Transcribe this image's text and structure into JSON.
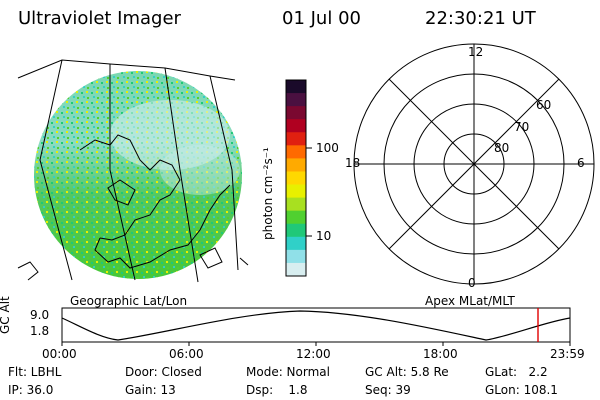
{
  "header": {
    "instrument": "Ultraviolet Imager",
    "date": "01 Jul 00",
    "time": "22:30:21 UT"
  },
  "colorbar": {
    "unit_label": "photon cm⁻²s⁻¹",
    "ticks": [
      "100",
      "10"
    ],
    "colors_top_to_bottom": [
      "#1a0a2a",
      "#4a1040",
      "#7a0830",
      "#b00020",
      "#e02010",
      "#ff6a00",
      "#ffaa00",
      "#ffd800",
      "#e8f000",
      "#a8e020",
      "#50d030",
      "#20c878",
      "#30d0c8",
      "#90e0e8",
      "#d8eef0"
    ]
  },
  "geo_panel": {
    "label": "Geographic Lat/Lon"
  },
  "polar_panel": {
    "label": "Apex MLat/MLT",
    "mlt_labels": {
      "top": "12",
      "left": "18",
      "right": "6",
      "bottom": "0"
    },
    "lat_labels": [
      "60",
      "70",
      "80"
    ]
  },
  "altitude_plot": {
    "ylabel": "GC Alt",
    "y_ticks": [
      "9.0",
      "1.8"
    ],
    "x_ticks": [
      "00:00",
      "06:00",
      "12:00",
      "18:00",
      "23:59"
    ],
    "current_marker_color": "#e00000"
  },
  "footer": {
    "row1": {
      "flt": "Flt: LBHL",
      "door": "Door: Closed",
      "mode": "Mode: Normal",
      "gc_alt": "GC Alt: 5.8 Re",
      "glat": "GLat:   2.2"
    },
    "row2": {
      "ip": "IP: 36.0",
      "gain": "Gain: 13",
      "dsp": "Dsp:    1.8",
      "seq": "Seq: 39",
      "glon": "GLon: 108.1"
    }
  }
}
